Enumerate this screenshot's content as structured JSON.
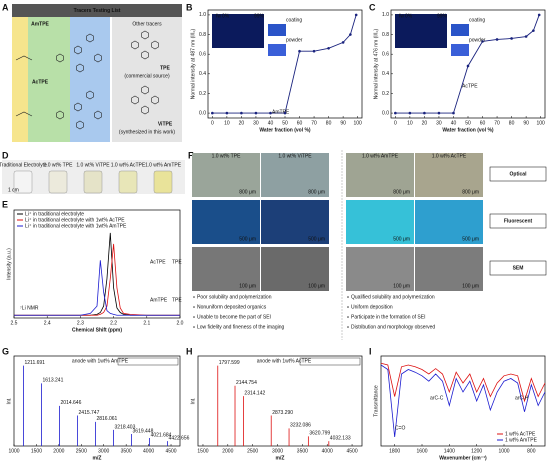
{
  "panel_labels": [
    "A",
    "B",
    "C",
    "D",
    "E",
    "F",
    "G",
    "H",
    "I"
  ],
  "panels": {
    "A": {
      "title": "Tracers Testing List",
      "tracers": [
        "AmTPE",
        "AcTPE"
      ],
      "other_title": "Other tracers",
      "others": [
        {
          "name": "TPE",
          "note": "(commercial source)"
        },
        {
          "name": "ViTPE",
          "note": "(synthesized in this work)"
        }
      ]
    },
    "D": {
      "vials": [
        "Traditional Electrolyte",
        "1.0 wt% TPE",
        "1.0 wt% ViTPE",
        "1.0 wt% AcTPE",
        "1.0 wt% AmTPE"
      ],
      "scale": "1 cm"
    },
    "F": {
      "columns": [
        "1.0 wt% TPE",
        "1.0 wt% ViTPE",
        "1.0 wt% AmTPE",
        "1.0 wt% AcTPE"
      ],
      "rows": [
        "Optical",
        "Fluorescent",
        "SEM"
      ],
      "scale_bars": [
        "800 μm",
        "500 μm",
        "100 μm"
      ],
      "left_points": [
        "Poor solubility and polymerization",
        "Nonuniform deposited organics",
        "Unable to become the part of SEI",
        "Low fidelity and fineness of the imaging"
      ],
      "right_points": [
        "Qualified solubility and polymerization",
        "Uniform deposition",
        "Participate in the formation of SEI",
        "Distribution and morphology observed"
      ]
    }
  },
  "chart_data": [
    {
      "type": "line",
      "xlabel": "Water fraction (vol %)",
      "ylabel": "Normal intensity at 487 nm (I/I₀)",
      "color": "#1a237e",
      "x": [
        0,
        10,
        20,
        30,
        40,
        50,
        60,
        70,
        80,
        90,
        95,
        99
      ],
      "values": [
        0,
        0,
        0,
        0,
        0,
        0,
        0.63,
        0.63,
        0.66,
        0.72,
        0.8,
        1.0
      ],
      "xlim": [
        -3,
        103
      ],
      "ylim": [
        -0.05,
        1.05
      ],
      "xticks": [
        0,
        10,
        20,
        30,
        40,
        50,
        60,
        70,
        80,
        90,
        100
      ],
      "yticks": [
        {
          "value": 0,
          "label": "0.0"
        },
        0.2,
        0.4,
        0.6,
        0.8,
        {
          "value": 1,
          "label": "1.0"
        }
      ],
      "annotations": [
        "fw",
        "0%",
        "99%",
        "coating",
        "powder",
        "AmTPE"
      ]
    },
    {
      "type": "line",
      "xlabel": "Water fraction (vol %)",
      "ylabel": "Normal intensity at 476 nm (I/I₀)",
      "color": "#1a237e",
      "x": [
        0,
        10,
        20,
        30,
        40,
        50,
        60,
        70,
        80,
        90,
        95,
        99
      ],
      "values": [
        0,
        0,
        0,
        0,
        0,
        0.48,
        0.73,
        0.75,
        0.76,
        0.78,
        0.84,
        1.0
      ],
      "xlim": [
        -3,
        103
      ],
      "ylim": [
        -0.05,
        1.05
      ],
      "xticks": [
        0,
        10,
        20,
        30,
        40,
        50,
        60,
        70,
        80,
        90,
        100
      ],
      "yticks": [
        {
          "value": 0,
          "label": "0.0"
        },
        0.2,
        0.4,
        0.6,
        0.8,
        {
          "value": 1,
          "label": "1.0"
        }
      ],
      "annotations": [
        "fw",
        "0%",
        "99%",
        "coating",
        "powder",
        "AcTPE"
      ]
    },
    {
      "type": "spectrum",
      "xlabel": "Chemical Shift (ppm)",
      "ylabel": "Intensity (a.u.)",
      "legend": "top-left",
      "x": [
        2.5,
        2.4,
        2.3,
        2.27,
        2.25,
        2.24,
        2.23,
        2.22,
        2.21,
        2.2,
        2.19,
        2.18,
        2.17,
        2.15,
        2.1,
        2.0
      ],
      "series": [
        {
          "name": "Li⁺ in traditional electrolyte",
          "color": "#000000",
          "values": [
            0,
            0,
            0,
            0,
            0.01,
            0.03,
            0.1,
            0.4,
            0.9,
            0.3,
            0.08,
            0.03,
            0.01,
            0,
            0,
            0
          ]
        },
        {
          "name": "Li⁺ in traditional electrolyte with 1wt% AcTPE",
          "color": "#dd1111",
          "values": [
            0,
            0,
            0,
            0,
            0,
            0.01,
            0.03,
            0.1,
            0.4,
            0.78,
            0.3,
            0.08,
            0.02,
            0.01,
            0,
            0
          ]
        },
        {
          "name": "Li⁺ in traditional electrolyte with 1wt% AmTPE",
          "color": "#1c1cd0",
          "values": [
            0,
            0,
            0,
            0.02,
            0.1,
            0.6,
            0.25,
            0.05,
            0.02,
            0.01,
            0,
            0,
            0,
            0,
            0,
            0
          ]
        }
      ],
      "xlim": [
        2.5,
        2.0
      ],
      "ylim": [
        -0.03,
        1.15
      ],
      "xticks": [
        2.5,
        2.4,
        2.3,
        2.2,
        2.1,
        {
          "value": 2,
          "label": "2.0"
        }
      ],
      "annotations": [
        "⁷Li NMR",
        "AcTPE",
        "TPE",
        "AmTPE",
        "TPE"
      ]
    },
    {
      "type": "stem",
      "xlabel": "m/Z",
      "ylabel": "Int.",
      "color": "#1c1cd0",
      "x": [
        1211.691,
        1613.241,
        2014.646,
        2415.747,
        2816.061,
        3218.403,
        3619.448,
        4021.684,
        4422.656
      ],
      "values": [
        1.0,
        0.78,
        0.5,
        0.38,
        0.3,
        0.2,
        0.15,
        0.1,
        0.06
      ],
      "xlim": [
        1000,
        4700
      ],
      "ylim": [
        0,
        1.12
      ],
      "xticks": [
        1000,
        1500,
        2000,
        2500,
        3000,
        3500,
        4000,
        4500
      ],
      "annotations": [
        "anode with 1wt% AmTPE"
      ]
    },
    {
      "type": "stem",
      "xlabel": "m/Z",
      "ylabel": "Int.",
      "color": "#dd1111",
      "x": [
        1797.599,
        2144.754,
        2314.142,
        2873.29,
        3232.086,
        3620.799,
        4032.133
      ],
      "x_labels": [
        "1797.599",
        "2144.754",
        "2314.142",
        "2873.290",
        "3232.086",
        "3620.799",
        "4032.133"
      ],
      "values": [
        1.0,
        0.75,
        0.62,
        0.38,
        0.22,
        0.12,
        0.06
      ],
      "xlim": [
        1400,
        4700
      ],
      "ylim": [
        0,
        1.12
      ],
      "xticks": [
        1500,
        2000,
        2500,
        3000,
        3500,
        4000,
        4500
      ],
      "annotations": [
        "anode with 1wt% AcTPE"
      ]
    },
    {
      "type": "spectrum",
      "xlabel": "Wavenumber (cm⁻¹)",
      "ylabel": "Transmittance",
      "legend": "bottom-right",
      "x": [
        1900,
        1850,
        1800,
        1750,
        1700,
        1650,
        1600,
        1550,
        1500,
        1450,
        1400,
        1350,
        1300,
        1250,
        1200,
        1150,
        1100,
        1050,
        1000,
        950,
        900,
        850,
        800,
        750,
        700
      ],
      "series": [
        {
          "name": "1 wt% AcTPE",
          "color": "#dd1111",
          "values": [
            0.92,
            0.9,
            0.55,
            0.88,
            0.9,
            0.88,
            0.85,
            0.8,
            0.86,
            0.8,
            0.6,
            0.82,
            0.7,
            0.8,
            0.6,
            0.75,
            0.55,
            0.7,
            0.78,
            0.8,
            0.78,
            0.5,
            0.75,
            0.55,
            0.7
          ]
        },
        {
          "name": "1 wt% AmTPE",
          "color": "#1c1cd0",
          "values": [
            0.9,
            0.85,
            0.1,
            0.8,
            0.85,
            0.82,
            0.78,
            0.72,
            0.8,
            0.72,
            0.45,
            0.75,
            0.6,
            0.72,
            0.5,
            0.68,
            0.4,
            0.6,
            0.72,
            0.75,
            0.7,
            0.38,
            0.68,
            0.45,
            0.6
          ]
        }
      ],
      "xlim": [
        1900,
        700
      ],
      "ylim": [
        0,
        1
      ],
      "xticks": [
        1800,
        1600,
        1400,
        1200,
        1000,
        800
      ],
      "annotations": [
        "C=O",
        "arC-C",
        "arC-H"
      ]
    }
  ]
}
